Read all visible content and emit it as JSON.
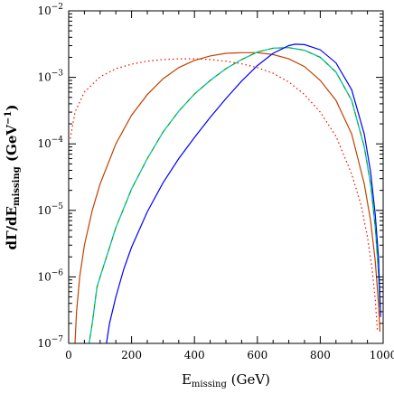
{
  "chart_data": {
    "type": "line",
    "title": "",
    "xlabel": {
      "main": "E",
      "sub": "missing",
      "unit": " (GeV)"
    },
    "ylabel": {
      "main": "dΓ/dE",
      "sub": "missing",
      "unit": "  (GeV",
      "unit_sup": "−1",
      "unit_close": ")"
    },
    "xlim": [
      0,
      1000
    ],
    "ylim": [
      1e-07,
      0.01
    ],
    "yscale": "log",
    "grid": false,
    "legend": "none",
    "x_ticks": [
      {
        "value": 0,
        "label": "0"
      },
      {
        "value": 200,
        "label": "200"
      },
      {
        "value": 400,
        "label": "400"
      },
      {
        "value": 600,
        "label": "600"
      },
      {
        "value": 800,
        "label": "800"
      },
      {
        "value": 1000,
        "label": "1000"
      }
    ],
    "y_ticks": [
      {
        "value": 1e-07,
        "base": "10",
        "exp": "−7"
      },
      {
        "value": 1e-06,
        "base": "10",
        "exp": "−6"
      },
      {
        "value": 1e-05,
        "base": "10",
        "exp": "−5"
      },
      {
        "value": 0.0001,
        "base": "10",
        "exp": "−4"
      },
      {
        "value": 0.001,
        "base": "10",
        "exp": "−3"
      },
      {
        "value": 0.01,
        "base": "10",
        "exp": "−2"
      }
    ],
    "series": [
      {
        "color": "#ff0000",
        "dash": "dotted",
        "x": [
          5,
          20,
          50,
          100,
          150,
          200,
          250,
          300,
          350,
          400,
          450,
          500,
          550,
          600,
          650,
          700,
          750,
          800,
          850,
          900,
          930,
          950,
          965,
          975,
          982
        ],
        "y": [
          0.00012,
          0.0003,
          0.0006,
          0.00102,
          0.00135,
          0.00158,
          0.00175,
          0.00185,
          0.0019,
          0.0019,
          0.00185,
          0.00175,
          0.0016,
          0.0014,
          0.00115,
          0.00085,
          0.00055,
          0.0003,
          0.00013,
          3.5e-05,
          1.2e-05,
          4e-06,
          1.3e-06,
          4.5e-07,
          1.5e-07
        ]
      },
      {
        "color": "#c04000",
        "dash": "solid",
        "x": [
          20,
          25,
          35,
          50,
          75,
          100,
          150,
          200,
          250,
          300,
          350,
          400,
          450,
          500,
          550,
          600,
          650,
          700,
          750,
          800,
          850,
          900,
          940,
          960,
          975,
          985,
          990
        ],
        "y": [
          1e-07,
          3e-07,
          1e-06,
          3e-06,
          1e-05,
          2.5e-05,
          0.0001,
          0.00027,
          0.00055,
          0.00095,
          0.0014,
          0.0018,
          0.0021,
          0.0023,
          0.00235,
          0.00235,
          0.0022,
          0.0019,
          0.00145,
          0.0009,
          0.00045,
          0.00014,
          2.5e-05,
          7e-06,
          1.7e-06,
          4e-07,
          1.5e-07
        ]
      },
      {
        "color": "#00a000",
        "dash": "solid",
        "x": [
          65,
          75,
          90,
          100,
          150,
          200,
          250,
          300,
          350,
          400,
          450,
          500,
          550,
          600,
          650,
          700,
          750,
          800,
          850,
          900,
          940,
          960,
          975,
          985,
          990
        ],
        "y": [
          1e-07,
          2e-07,
          7e-07,
          1e-06,
          5.5e-06,
          2.1e-05,
          6e-05,
          0.00015,
          0.00031,
          0.00056,
          0.0009,
          0.00135,
          0.00185,
          0.0024,
          0.00275,
          0.0028,
          0.00255,
          0.002,
          0.0012,
          0.00045,
          9e-05,
          2.5e-05,
          5.5e-06,
          1.2e-06,
          3.5e-07
        ]
      },
      {
        "color": "#00c8e0",
        "dash": "dashed",
        "x": [
          65,
          75,
          90,
          100,
          150,
          200,
          250,
          300,
          350,
          400,
          450,
          500,
          550,
          600,
          650,
          700,
          750,
          800,
          850,
          900,
          940,
          960,
          975,
          985,
          990
        ],
        "y": [
          1e-07,
          2e-07,
          7e-07,
          1e-06,
          5.5e-06,
          2.1e-05,
          6e-05,
          0.00015,
          0.00031,
          0.00056,
          0.0009,
          0.00135,
          0.00185,
          0.0024,
          0.00275,
          0.0028,
          0.00255,
          0.002,
          0.0012,
          0.00045,
          9e-05,
          2.5e-05,
          5.5e-06,
          1.2e-06,
          3.5e-07
        ]
      },
      {
        "color": "#0000ff",
        "dash": "solid",
        "x": [
          120,
          130,
          150,
          175,
          200,
          250,
          300,
          350,
          400,
          450,
          500,
          550,
          600,
          650,
          700,
          720,
          750,
          800,
          850,
          900,
          940,
          960,
          975,
          985,
          992
        ],
        "y": [
          1e-07,
          2e-07,
          5e-07,
          1.3e-06,
          2.8e-06,
          9.5e-06,
          2.6e-05,
          6e-05,
          0.000125,
          0.00025,
          0.00048,
          0.00088,
          0.0015,
          0.0023,
          0.003,
          0.00315,
          0.0031,
          0.0026,
          0.00165,
          0.00065,
          0.00014,
          3.8e-05,
          8.5e-06,
          2e-06,
          2.5e-07
        ]
      }
    ]
  }
}
